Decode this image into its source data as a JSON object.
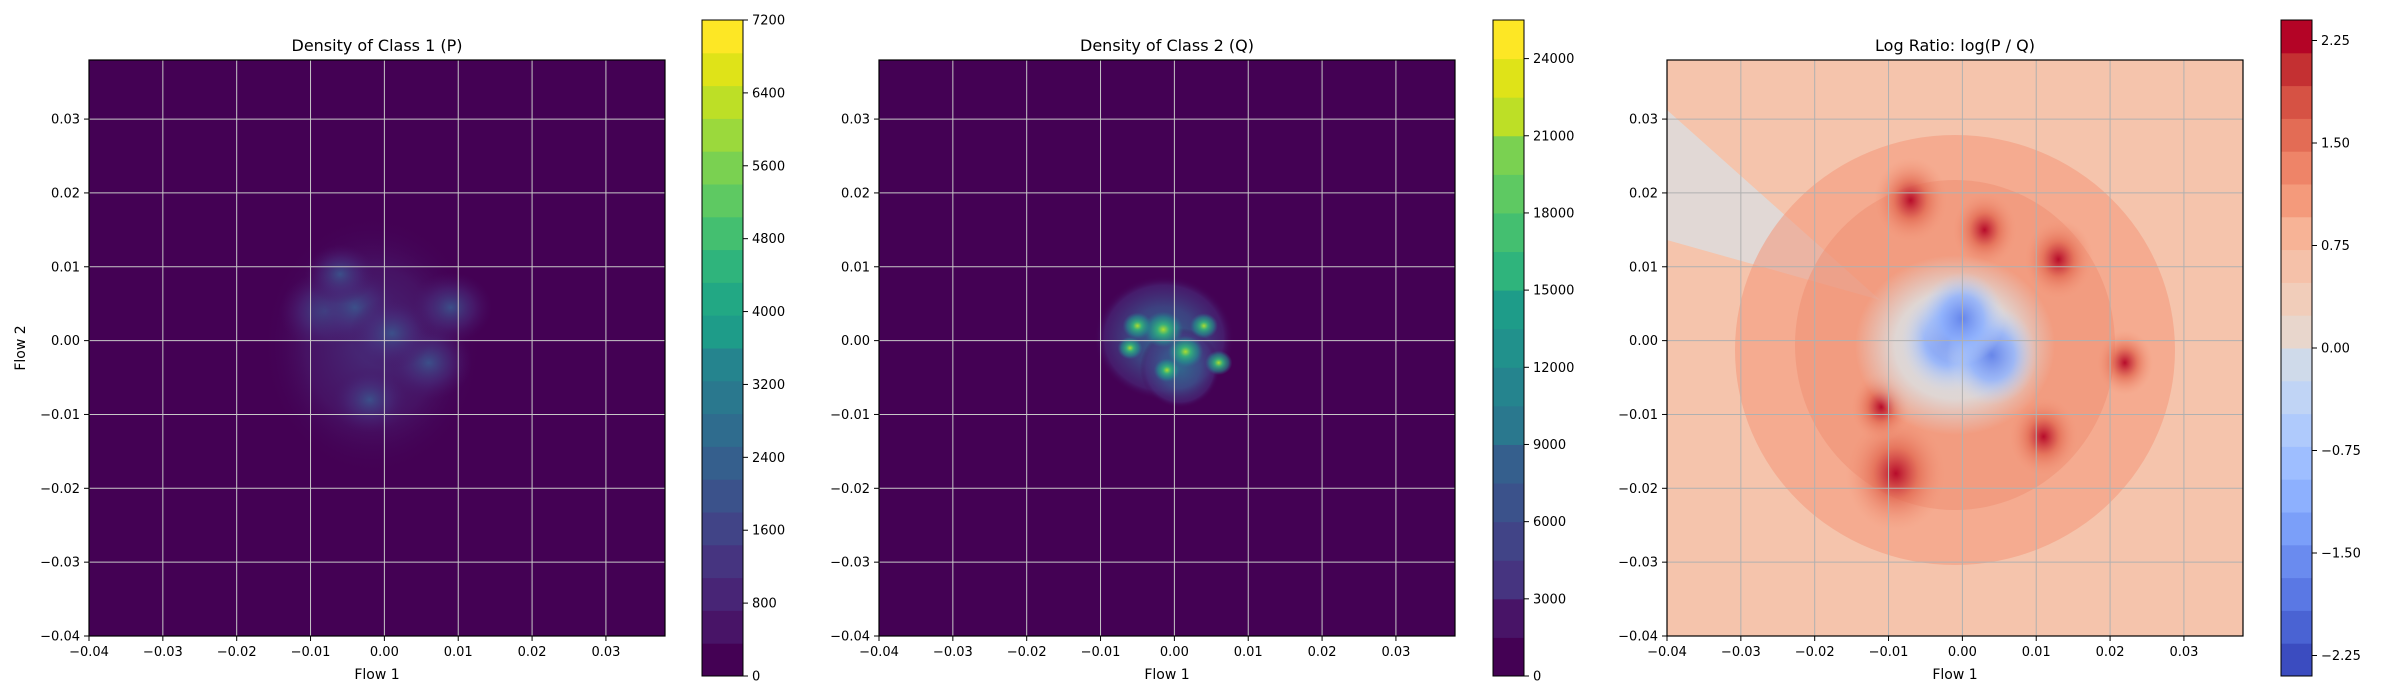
{
  "chart_data": [
    {
      "type": "heatmap",
      "title": "Density of Class 1 (P)",
      "xlabel": "Flow 1",
      "ylabel": "Flow 2",
      "xlim": [
        -0.04,
        0.038
      ],
      "ylim": [
        -0.04,
        0.038
      ],
      "x_ticks": [
        "−0.04",
        "−0.03",
        "−0.02",
        "−0.01",
        "0.00",
        "0.01",
        "0.02",
        "0.03"
      ],
      "y_ticks": [
        "−0.04",
        "−0.03",
        "−0.02",
        "−0.01",
        "0.00",
        "0.01",
        "0.02",
        "0.03"
      ],
      "grid": true,
      "colormap": "viridis",
      "colorbar": {
        "min": 0,
        "max": 7200,
        "ticks": [
          "0",
          "800",
          "1600",
          "2400",
          "3200",
          "4000",
          "4800",
          "5600",
          "6400",
          "7200"
        ],
        "tick_values": [
          0,
          800,
          1600,
          2400,
          3200,
          4000,
          4800,
          5600,
          6400,
          7200
        ],
        "levels": 20
      },
      "blobs": [
        {
          "x": -0.008,
          "y": 0.004,
          "amp": 2100
        },
        {
          "x": -0.004,
          "y": 0.0045,
          "amp": 2000
        },
        {
          "x": 0.006,
          "y": -0.003,
          "amp": 1900
        },
        {
          "x": -0.002,
          "y": -0.008,
          "amp": 1500
        },
        {
          "x": 0.001,
          "y": 0.001,
          "amp": 1800
        },
        {
          "x": 0.009,
          "y": 0.0045,
          "amp": 1700
        },
        {
          "x": -0.006,
          "y": 0.009,
          "amp": 1200
        }
      ]
    },
    {
      "type": "heatmap",
      "title": "Density of Class 2 (Q)",
      "xlabel": "Flow 1",
      "ylabel": "",
      "xlim": [
        -0.04,
        0.038
      ],
      "ylim": [
        -0.04,
        0.038
      ],
      "x_ticks": [
        "−0.04",
        "−0.03",
        "−0.02",
        "−0.01",
        "0.00",
        "0.01",
        "0.02",
        "0.03"
      ],
      "y_ticks": [
        "−0.04",
        "−0.03",
        "−0.02",
        "−0.01",
        "0.00",
        "0.01",
        "0.02",
        "0.03"
      ],
      "grid": true,
      "colormap": "viridis",
      "colorbar": {
        "min": 0,
        "max": 25500,
        "ticks": [
          "0",
          "3000",
          "6000",
          "9000",
          "12000",
          "15000",
          "18000",
          "21000",
          "24000"
        ],
        "tick_values": [
          0,
          3000,
          6000,
          9000,
          12000,
          15000,
          18000,
          21000,
          24000
        ],
        "levels": 17
      },
      "blobs": [
        {
          "x": -0.0015,
          "y": 0.0015,
          "amp": 16000
        },
        {
          "x": 0.0015,
          "y": -0.0015,
          "amp": 13000
        },
        {
          "x": -0.005,
          "y": 0.002,
          "amp": 9000
        },
        {
          "x": 0.004,
          "y": 0.002,
          "amp": 8000
        },
        {
          "x": -0.001,
          "y": -0.004,
          "amp": 7000
        },
        {
          "x": 0.006,
          "y": -0.003,
          "amp": 7500
        },
        {
          "x": -0.006,
          "y": -0.001,
          "amp": 6000
        }
      ]
    },
    {
      "type": "heatmap",
      "title": "Log Ratio: log(P / Q)",
      "xlabel": "Flow 1",
      "ylabel": "",
      "xlim": [
        -0.04,
        0.038
      ],
      "ylim": [
        -0.04,
        0.038
      ],
      "x_ticks": [
        "−0.04",
        "−0.03",
        "−0.02",
        "−0.01",
        "0.00",
        "0.01",
        "0.02",
        "0.03"
      ],
      "y_ticks": [
        "−0.04",
        "−0.03",
        "−0.02",
        "−0.01",
        "0.00",
        "0.01",
        "0.02",
        "0.03"
      ],
      "grid": true,
      "colormap": "coolwarm",
      "colorbar": {
        "min": -2.4,
        "max": 2.4,
        "ticks": [
          "−2.25",
          "−1.50",
          "−0.75",
          "0.00",
          "0.75",
          "1.50",
          "2.25"
        ],
        "tick_values": [
          -2.25,
          -1.5,
          -0.75,
          0.0,
          0.75,
          1.5,
          2.25
        ],
        "levels": 20
      },
      "background_value": 0.5,
      "hotspots": [
        {
          "x": -0.009,
          "y": -0.018,
          "value": 2.3
        },
        {
          "x": -0.007,
          "y": 0.019,
          "value": 1.7
        },
        {
          "x": 0.003,
          "y": 0.015,
          "value": 1.5
        },
        {
          "x": 0.013,
          "y": 0.011,
          "value": 1.6
        },
        {
          "x": 0.011,
          "y": -0.013,
          "value": 1.6
        },
        {
          "x": -0.011,
          "y": -0.009,
          "value": 1.4
        },
        {
          "x": 0.022,
          "y": -0.003,
          "value": 1.3
        }
      ],
      "coldspots": [
        {
          "x": -0.002,
          "y": 0.0,
          "value": -1.6
        },
        {
          "x": 0.004,
          "y": -0.002,
          "value": -1.5
        },
        {
          "x": 0.0,
          "y": 0.003,
          "value": -1.2
        }
      ]
    }
  ]
}
